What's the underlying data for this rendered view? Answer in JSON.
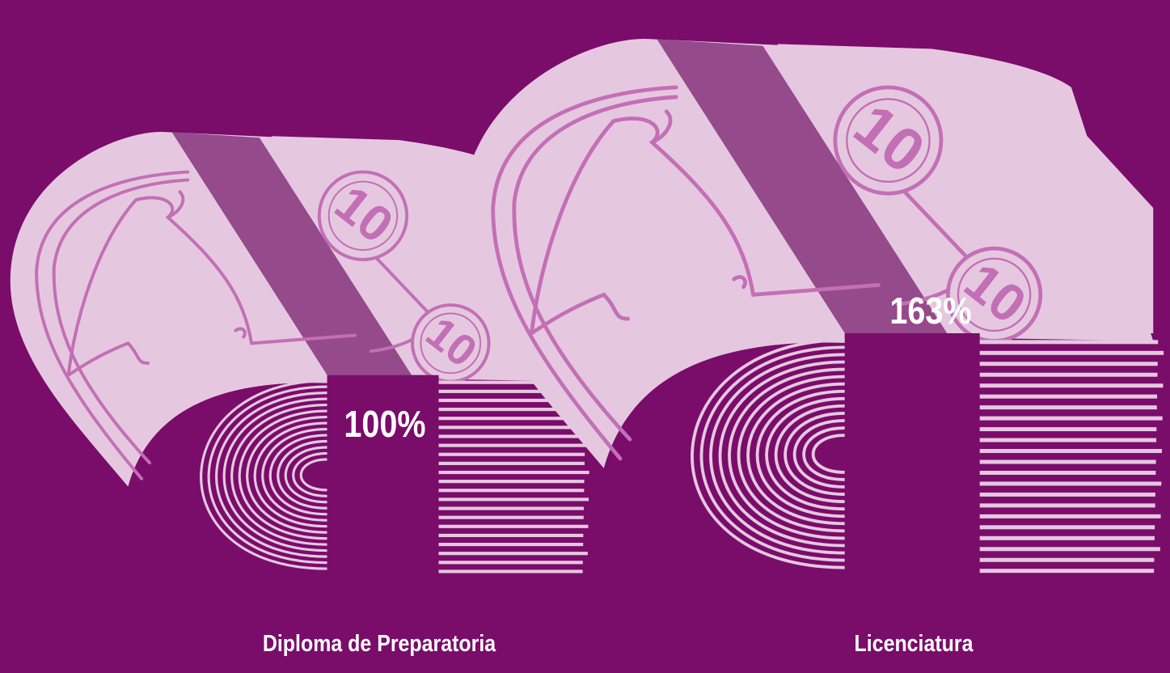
{
  "chart_data": {
    "type": "bar",
    "categories": [
      "Diploma de Preparatoria",
      "Licenciatura"
    ],
    "values": [
      100,
      163
    ],
    "value_labels": [
      "100%",
      "163%"
    ],
    "unit": "%",
    "coin_denomination": "10",
    "title": "",
    "xlabel": "",
    "ylabel": ""
  },
  "colors": {
    "background": "#7a0c6a",
    "bill_face": "#e5c8e0",
    "bill_ink": "#c36fb5",
    "band": "#954a8b",
    "text": "#ffffff"
  }
}
